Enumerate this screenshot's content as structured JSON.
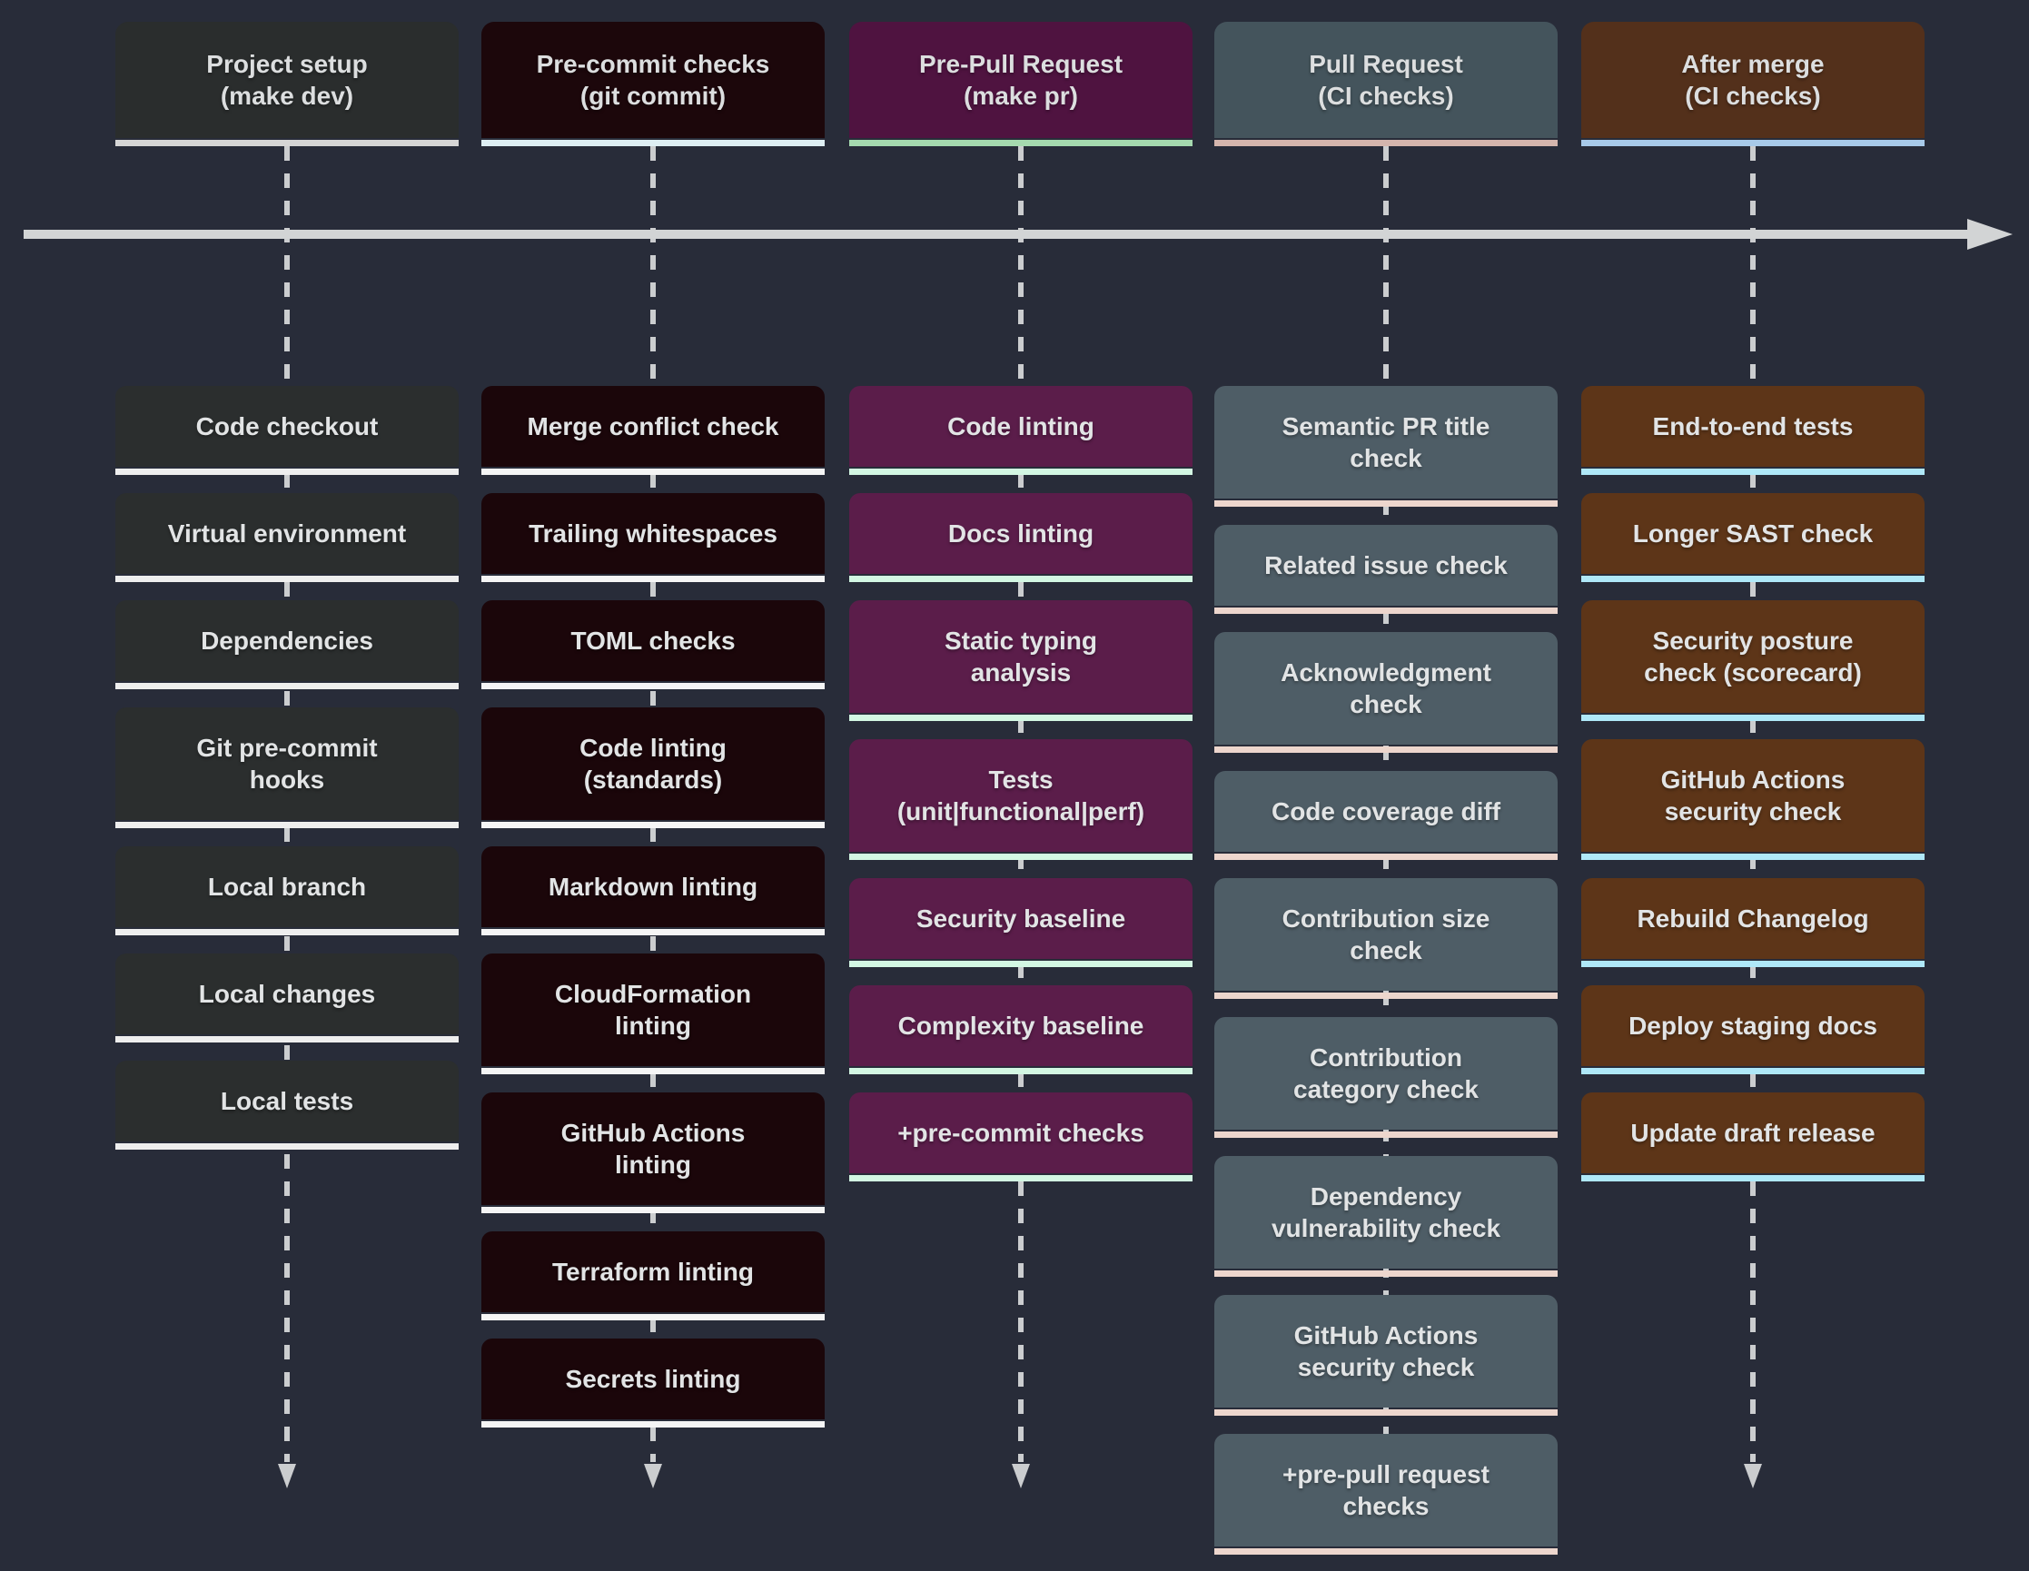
{
  "canvas": {
    "background": "#282c39",
    "dash_color": "#cbcdcf",
    "arrow_color": "#d2d4d5"
  },
  "timeline": {
    "direction": "left-to-right"
  },
  "columns": [
    {
      "id": "project-setup",
      "header": "Project setup\n(make dev)",
      "colors": {
        "header_bg": "#2a2d2d",
        "item_bg": "#2b2e2e",
        "header_line": "#d5d5d5",
        "item_line": "#eeeeee"
      },
      "has_end_arrow": true,
      "items": [
        "Code checkout",
        "Virtual environment",
        "Dependencies",
        "Git pre-commit\nhooks",
        "Local branch",
        "Local changes",
        "Local tests"
      ]
    },
    {
      "id": "pre-commit-checks",
      "header": "Pre-commit checks\n(git commit)",
      "colors": {
        "header_bg": "#1c070b",
        "item_bg": "#1b060a",
        "header_line": "#deeef3",
        "item_line": "#f5f5f5"
      },
      "has_end_arrow": true,
      "items": [
        "Merge conflict check",
        "Trailing whitespaces",
        "TOML checks",
        "Code linting\n(standards)",
        "Markdown linting",
        "CloudFormation\nlinting",
        "GitHub Actions\nlinting",
        "Terraform linting",
        "Secrets linting"
      ]
    },
    {
      "id": "pre-pull-request",
      "header": "Pre-Pull Request\n(make pr)",
      "colors": {
        "header_bg": "#4f1340",
        "item_bg": "#5b1d4a",
        "header_line": "#a5d9af",
        "item_line": "#d3f7e3"
      },
      "has_end_arrow": true,
      "items": [
        "Code linting",
        "Docs linting",
        "Static typing\nanalysis",
        "Tests\n(unit|functional|perf)",
        "Security baseline",
        "Complexity baseline",
        "+pre-commit checks"
      ]
    },
    {
      "id": "pull-request",
      "header": "Pull Request\n(CI checks)",
      "colors": {
        "header_bg": "#44545c",
        "item_bg": "#4e5d66",
        "header_line": "#d4b5ad",
        "item_line": "#edd6cd"
      },
      "has_end_arrow": false,
      "items": [
        "Semantic PR title\ncheck",
        "Related issue check",
        "Acknowledgment\ncheck",
        "Code coverage diff",
        "Contribution size\ncheck",
        "Contribution\ncategory check",
        "Dependency\nvulnerability check",
        "GitHub Actions\nsecurity check",
        "+pre-pull request\nchecks"
      ]
    },
    {
      "id": "after-merge",
      "header": "After merge\n(CI checks)",
      "colors": {
        "header_bg": "#53301b",
        "item_bg": "#5d3518",
        "header_line": "#a8cae9",
        "item_line": "#afe8f8"
      },
      "has_end_arrow": true,
      "items": [
        "End-to-end tests",
        "Longer SAST check",
        "Security posture\ncheck (scorecard)",
        "GitHub Actions\nsecurity check",
        "Rebuild Changelog",
        "Deploy staging docs",
        "Update draft release"
      ]
    }
  ]
}
